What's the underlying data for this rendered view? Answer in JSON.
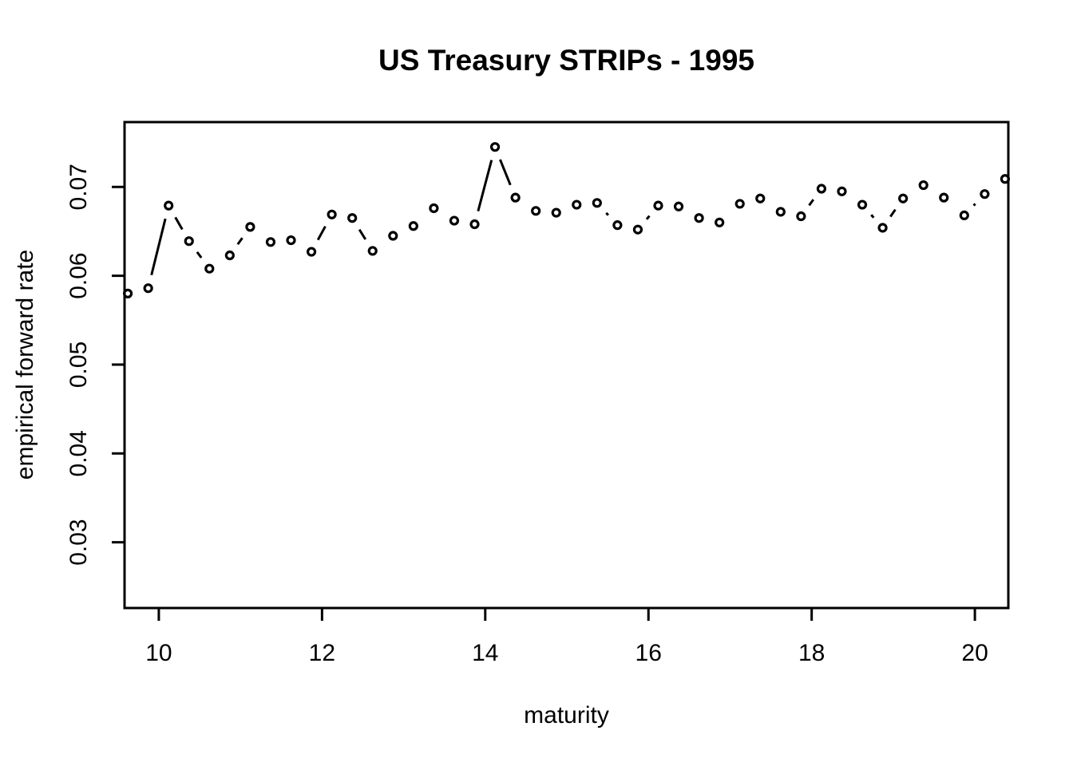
{
  "chart_data": {
    "type": "line",
    "subtype": "points-and-lines-open-circles",
    "title": "US Treasury STRIPs - 1995",
    "xlabel": "maturity",
    "ylabel": "empirical forward rate",
    "x": [
      9.62,
      9.87,
      10.12,
      10.37,
      10.62,
      10.87,
      11.12,
      11.37,
      11.62,
      11.87,
      12.12,
      12.37,
      12.62,
      12.87,
      13.12,
      13.37,
      13.62,
      13.87,
      14.12,
      14.37,
      14.62,
      14.87,
      15.12,
      15.37,
      15.62,
      15.87,
      16.12,
      16.37,
      16.62,
      16.87,
      17.12,
      17.37,
      17.62,
      17.87,
      18.12,
      18.37,
      18.62,
      18.87,
      19.12,
      19.37,
      19.62,
      19.87,
      20.12,
      20.37
    ],
    "y": [
      0.058,
      0.0586,
      0.0679,
      0.0639,
      0.0608,
      0.0623,
      0.0655,
      0.0638,
      0.064,
      0.0627,
      0.0669,
      0.0665,
      0.0628,
      0.0645,
      0.0656,
      0.0676,
      0.0662,
      0.0658,
      0.0745,
      0.0688,
      0.0673,
      0.0671,
      0.068,
      0.0682,
      0.0657,
      0.0652,
      0.0679,
      0.0678,
      0.0665,
      0.066,
      0.0681,
      0.0687,
      0.0672,
      0.0667,
      0.0698,
      0.0695,
      0.068,
      0.0654,
      0.0687,
      0.0702,
      0.0688,
      0.0668,
      0.0692,
      0.0709
    ],
    "xlim": [
      9.58,
      20.41
    ],
    "ylim": [
      0.0226,
      0.0773
    ],
    "xticks": [
      10,
      12,
      14,
      16,
      18,
      20
    ],
    "xtick_labels": [
      "10",
      "12",
      "14",
      "16",
      "18",
      "20"
    ],
    "yticks": [
      0.03,
      0.04,
      0.05,
      0.06,
      0.07
    ],
    "ytick_labels": [
      "0.03",
      "0.04",
      "0.05",
      "0.06",
      "0.07"
    ],
    "grid": false,
    "legend": null,
    "marker": "open-circle",
    "line_color": "#000000",
    "background": "#ffffff"
  }
}
